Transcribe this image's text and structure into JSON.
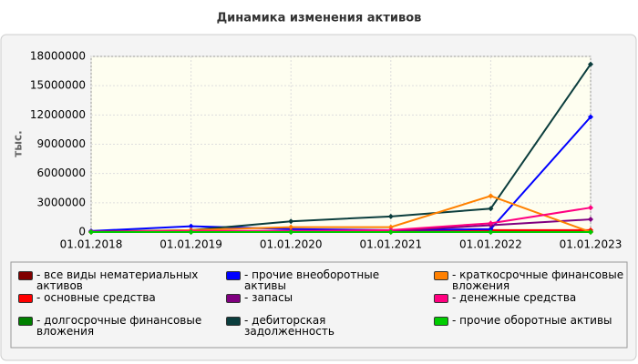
{
  "chart_data": {
    "type": "line",
    "title": "Динамика изменения активов",
    "y_label": "тыс.",
    "categories": [
      "01.01.2018",
      "01.01.2019",
      "01.01.2020",
      "01.01.2021",
      "01.01.2022",
      "01.01.2023"
    ],
    "ylim": [
      0,
      18000000
    ],
    "yticks": [
      0,
      3000000,
      6000000,
      9000000,
      12000000,
      15000000,
      18000000
    ],
    "grid": true,
    "legend": "bottom",
    "series": [
      {
        "name": "- все виды нематериальных активов",
        "color": "#800000",
        "values": [
          0,
          20000,
          30000,
          30000,
          50000,
          50000
        ]
      },
      {
        "name": "- основные средства",
        "color": "#ff0000",
        "values": [
          30000,
          60000,
          100000,
          100000,
          200000,
          200000
        ]
      },
      {
        "name": "- долгосрочные финансовые вложения",
        "color": "#008000",
        "values": [
          0,
          0,
          0,
          0,
          0,
          0
        ]
      },
      {
        "name": "- прочие внеоборотные активы",
        "color": "#0000ff",
        "values": [
          100000,
          600000,
          300000,
          200000,
          300000,
          11800000
        ]
      },
      {
        "name": "- запасы",
        "color": "#800080",
        "values": [
          0,
          100000,
          100000,
          100000,
          700000,
          1300000
        ]
      },
      {
        "name": "- дебиторская задолженность",
        "color": "#0b3d3d",
        "values": [
          50000,
          200000,
          1100000,
          1600000,
          2400000,
          17200000
        ]
      },
      {
        "name": "- краткосрочные финансовые вложения",
        "color": "#ff8000",
        "values": [
          0,
          200000,
          500000,
          500000,
          3700000,
          0
        ]
      },
      {
        "name": "- денежные средства",
        "color": "#ff0080",
        "values": [
          50000,
          100000,
          100000,
          200000,
          900000,
          2500000
        ]
      },
      {
        "name": "- прочие оборотные активы",
        "color": "#00cc00",
        "values": [
          0,
          0,
          0,
          0,
          0,
          0
        ]
      }
    ]
  }
}
